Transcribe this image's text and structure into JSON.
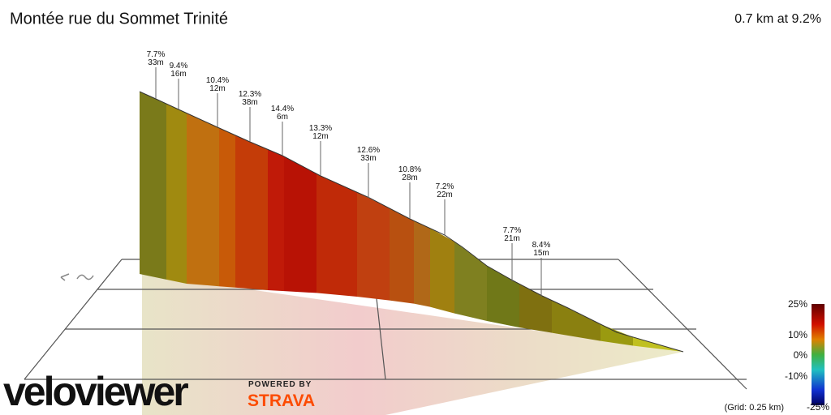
{
  "title": "Montée rue du Sommet Trinité",
  "summary": "0.7 km at 9.2%",
  "annotations": [
    {
      "grade": "7.7%",
      "length": "33m"
    },
    {
      "grade": "9.4%",
      "length": "16m"
    },
    {
      "grade": "10.4%",
      "length": "12m"
    },
    {
      "grade": "12.3%",
      "length": "38m"
    },
    {
      "grade": "14.4%",
      "length": "6m"
    },
    {
      "grade": "13.3%",
      "length": "12m"
    },
    {
      "grade": "12.6%",
      "length": "33m"
    },
    {
      "grade": "10.8%",
      "length": "28m"
    },
    {
      "grade": "7.2%",
      "length": "22m"
    },
    {
      "grade": "7.7%",
      "length": "21m"
    },
    {
      "grade": "8.4%",
      "length": "15m"
    }
  ],
  "legend": {
    "labels": [
      "25%",
      "10%",
      "0%",
      "-10%",
      "-25%"
    ],
    "grid_note": "(Grid: 0.25 km)"
  },
  "branding": {
    "logo": "veloviewer",
    "powered": "POWERED BY",
    "strava": "STRAVA"
  }
}
